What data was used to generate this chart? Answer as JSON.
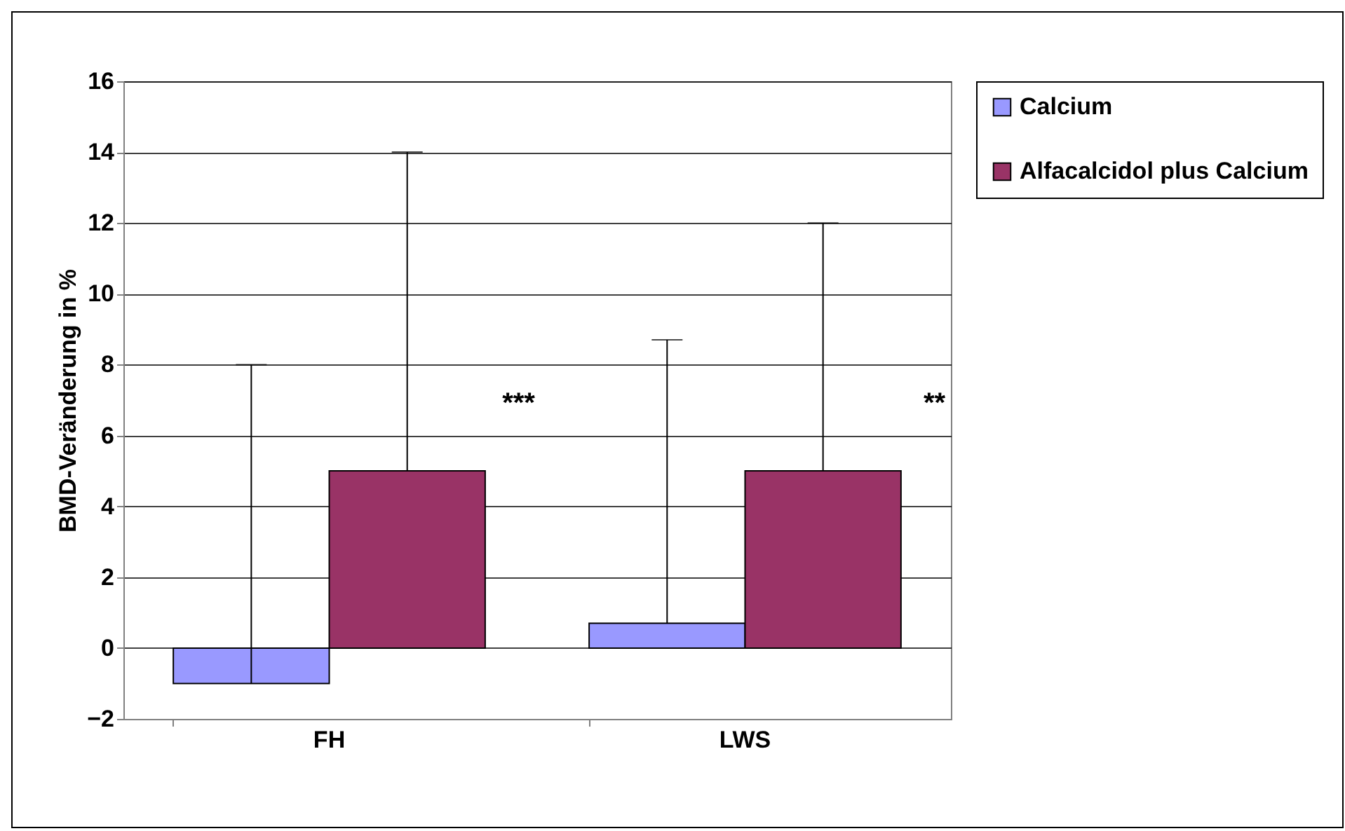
{
  "chart_data": {
    "type": "bar",
    "ylabel": "BMD-Veränderung in %",
    "categories": [
      "FH",
      "LWS"
    ],
    "series": [
      {
        "name": "Calcium",
        "color": "#9999ff",
        "values": [
          -1,
          0.7
        ],
        "errors": [
          [
            -1,
            8
          ],
          [
            0.7,
            8.7
          ]
        ]
      },
      {
        "name": "Alfacalcidol plus Calcium",
        "color": "#993366",
        "values": [
          5,
          5
        ],
        "errors": [
          [
            5,
            14
          ],
          [
            5,
            12
          ]
        ]
      }
    ],
    "ylim": [
      -2,
      16
    ],
    "yticks": [
      -2,
      0,
      2,
      4,
      6,
      8,
      10,
      12,
      14,
      16
    ],
    "grid": "y",
    "legend": "right",
    "annotations": [
      "***",
      "**"
    ]
  }
}
